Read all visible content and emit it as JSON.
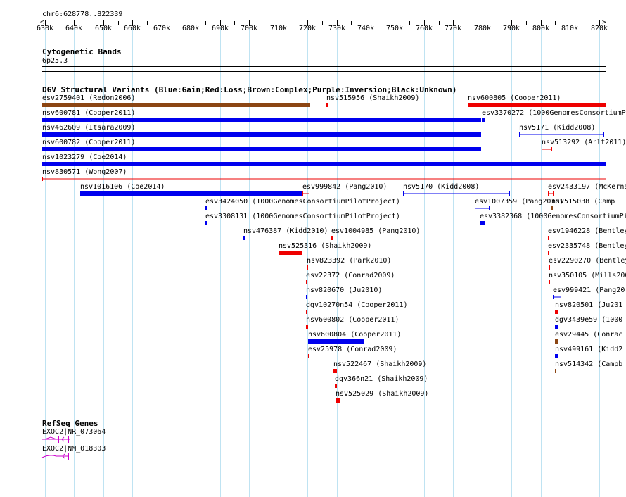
{
  "chromosome_label": "chr6:628778..822339",
  "scale": {
    "start_bp": 630000,
    "end_bp": 820000,
    "ticks": [
      "630k",
      "640k",
      "650k",
      "660k",
      "670k",
      "680k",
      "690k",
      "700k",
      "710k",
      "720k",
      "730k",
      "740k",
      "750k",
      "760k",
      "770k",
      "780k",
      "790k",
      "800k",
      "810k",
      "820k"
    ]
  },
  "tracks": {
    "cytoband": {
      "title": "Cytogenetic Bands",
      "band": "6p25.3"
    },
    "dgv": {
      "title": "DGV Structural Variants (Blue:Gain;Red:Loss;Brown:Complex;Purple:Inversion;Black:Unknown)"
    },
    "refseq": {
      "title": "RefSeq Genes"
    }
  },
  "colors": {
    "gain": "#0000ee",
    "loss": "#ee0000",
    "complex": "#8b4513",
    "gridline": "#bfe3f2",
    "gene": "#cc00cc"
  },
  "variants": [
    {
      "label": "esv2759401 (Redon2006)",
      "type": "complex",
      "style": "bar",
      "start_bp": 628778,
      "end_bp": 721000,
      "row": 0
    },
    {
      "label": "nsv515956 (Shaikh2009)",
      "type": "loss",
      "style": "bar",
      "start_bp": 726400,
      "end_bp": 727000,
      "row": 0
    },
    {
      "label": "nsv600805 (Cooper2011)",
      "type": "loss",
      "style": "bar",
      "start_bp": 775000,
      "end_bp": 822339,
      "row": 0
    },
    {
      "label": "nsv600781 (Cooper2011)",
      "type": "gain",
      "style": "bar",
      "start_bp": 628778,
      "end_bp": 779500,
      "row": 1
    },
    {
      "label": "esv3370272 (1000GenomesConsortiumPi",
      "type": "gain",
      "style": "bar",
      "start_bp": 779800,
      "end_bp": 780700,
      "row": 1
    },
    {
      "label": "nsv462609 (Itsara2009)",
      "type": "gain",
      "style": "bar",
      "start_bp": 628778,
      "end_bp": 779500,
      "row": 2
    },
    {
      "label": "nsv5171 (Kidd2008)",
      "type": "gain",
      "style": "line",
      "start_bp": 792500,
      "end_bp": 821500,
      "row": 2
    },
    {
      "label": "nsv600782 (Cooper2011)",
      "type": "gain",
      "style": "bar",
      "start_bp": 628778,
      "end_bp": 779500,
      "row": 3
    },
    {
      "label": "nsv513292 (Arlt2011)",
      "type": "loss",
      "style": "line",
      "start_bp": 800300,
      "end_bp": 803600,
      "row": 3
    },
    {
      "label": "nsv1023279 (Coe2014)",
      "type": "gain",
      "style": "bar",
      "start_bp": 628778,
      "end_bp": 822339,
      "row": 4
    },
    {
      "label": "nsv830571 (Wong2007)",
      "type": "loss",
      "style": "line",
      "start_bp": 628778,
      "end_bp": 822339,
      "row": 5
    },
    {
      "label": "nsv1016106 (Coe2014)",
      "type": "gain",
      "style": "bar",
      "start_bp": 642000,
      "end_bp": 718000,
      "row": 6
    },
    {
      "label": "esv999842 (Pang2010)",
      "type": "loss",
      "style": "line",
      "start_bp": 718400,
      "end_bp": 720400,
      "row": 6
    },
    {
      "label": "nsv5170 (Kidd2008)",
      "type": "gain",
      "style": "line",
      "start_bp": 752800,
      "end_bp": 789300,
      "row": 6
    },
    {
      "label": "esv2433197 (McKerna",
      "type": "loss",
      "style": "line",
      "start_bp": 802500,
      "end_bp": 804200,
      "row": 6
    },
    {
      "label": "esv3424050 (1000GenomesConsortiumPilotProject)",
      "type": "gain",
      "style": "bar",
      "start_bp": 684900,
      "end_bp": 685300,
      "row": 7
    },
    {
      "label": "esv1007359 (Pang2010)",
      "type": "gain",
      "style": "line",
      "start_bp": 777400,
      "end_bp": 782300,
      "row": 7
    },
    {
      "label": "nsv515038 (Camp",
      "type": "complex",
      "style": "bar",
      "start_bp": 803600,
      "end_bp": 804000,
      "row": 7
    },
    {
      "label": "esv3308131 (1000GenomesConsortiumPilotProject)",
      "type": "gain",
      "style": "bar",
      "start_bp": 684900,
      "end_bp": 685300,
      "row": 8
    },
    {
      "label": "esv3382368 (1000GenomesConsortiumPi",
      "type": "gain",
      "style": "bar",
      "start_bp": 779000,
      "end_bp": 781000,
      "row": 8
    },
    {
      "label": "nsv476387 (Kidd2010)",
      "type": "gain",
      "style": "bar",
      "start_bp": 698000,
      "end_bp": 698400,
      "row": 9
    },
    {
      "label": "esv1004985 (Pang2010)",
      "type": "loss",
      "style": "bar",
      "start_bp": 728200,
      "end_bp": 728600,
      "row": 9
    },
    {
      "label": "esv1946228 (Bentley",
      "type": "loss",
      "style": "bar",
      "start_bp": 802400,
      "end_bp": 803000,
      "row": 9
    },
    {
      "label": "nsv525316 (Shaikh2009)",
      "type": "loss",
      "style": "bar",
      "start_bp": 710000,
      "end_bp": 718200,
      "row": 10
    },
    {
      "label": "esv2335748 (Bentley",
      "type": "loss",
      "style": "bar",
      "start_bp": 802400,
      "end_bp": 803000,
      "row": 10
    },
    {
      "label": "nsv823392 (Park2010)",
      "type": "loss",
      "style": "bar",
      "start_bp": 719700,
      "end_bp": 720000,
      "row": 11
    },
    {
      "label": "esv2290270 (Bentley",
      "type": "loss",
      "style": "bar",
      "start_bp": 802800,
      "end_bp": 803100,
      "row": 11
    },
    {
      "label": "esv22372 (Conrad2009)",
      "type": "loss",
      "style": "bar",
      "start_bp": 719500,
      "end_bp": 720100,
      "row": 12
    },
    {
      "label": "nsv350105 (Mills200",
      "type": "loss",
      "style": "bar",
      "start_bp": 802800,
      "end_bp": 803100,
      "row": 12
    },
    {
      "label": "nsv820670 (Ju2010)",
      "type": "gain",
      "style": "bar",
      "start_bp": 719500,
      "end_bp": 720100,
      "row": 13
    },
    {
      "label": "esv999421 (Pang20",
      "type": "gain",
      "style": "line",
      "start_bp": 804300,
      "end_bp": 806800,
      "row": 13
    },
    {
      "label": "dgv10270n54 (Cooper2011)",
      "type": "loss",
      "style": "bar",
      "start_bp": 719500,
      "end_bp": 720100,
      "row": 14
    },
    {
      "label": "nsv820501 (Ju201",
      "type": "loss",
      "style": "bar",
      "start_bp": 805000,
      "end_bp": 806000,
      "row": 14
    },
    {
      "label": "nsv600802 (Cooper2011)",
      "type": "loss",
      "style": "bar",
      "start_bp": 719500,
      "end_bp": 720300,
      "row": 15
    },
    {
      "label": "dgv3439e59 (1000",
      "type": "gain",
      "style": "bar",
      "start_bp": 805000,
      "end_bp": 806000,
      "row": 15
    },
    {
      "label": "nsv600804 (Cooper2011)",
      "type": "gain",
      "style": "bar",
      "start_bp": 720300,
      "end_bp": 739200,
      "row": 16
    },
    {
      "label": "esv29445 (Conrac",
      "type": "complex",
      "style": "bar",
      "start_bp": 805000,
      "end_bp": 806000,
      "row": 16
    },
    {
      "label": "esv25978 (Conrad2009)",
      "type": "loss",
      "style": "bar",
      "start_bp": 720300,
      "end_bp": 720700,
      "row": 17
    },
    {
      "label": "nsv499161 (Kidd2",
      "type": "gain",
      "style": "bar",
      "start_bp": 805000,
      "end_bp": 806000,
      "row": 17
    },
    {
      "label": "nsv522467 (Shaikh2009)",
      "type": "loss",
      "style": "bar",
      "start_bp": 729000,
      "end_bp": 730100,
      "row": 18
    },
    {
      "label": "nsv514342 (Campb",
      "type": "complex",
      "style": "bar",
      "start_bp": 805000,
      "end_bp": 805300,
      "row": 18
    },
    {
      "label": "dgv366n21 (Shaikh2009)",
      "type": "loss",
      "style": "bar",
      "start_bp": 729500,
      "end_bp": 730100,
      "row": 19
    },
    {
      "label": "nsv525029 (Shaikh2009)",
      "type": "loss",
      "style": "bar",
      "start_bp": 729700,
      "end_bp": 731000,
      "row": 20
    }
  ],
  "genes": [
    {
      "label": "EXOC2|NR_073064"
    },
    {
      "label": "EXOC2|NM_018303"
    }
  ]
}
